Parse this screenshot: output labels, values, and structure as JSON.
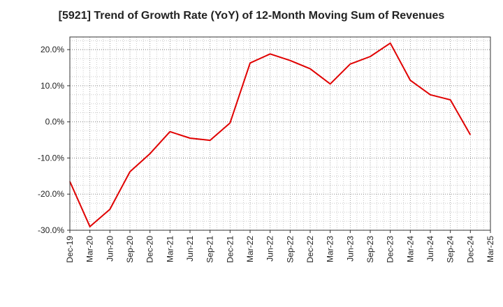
{
  "chart_data": {
    "type": "line",
    "title": "[5921]  Trend of Growth Rate (YoY) of 12-Month Moving Sum of Revenues",
    "xlabel": "",
    "ylabel": "",
    "ylim": [
      -30,
      23.5
    ],
    "y_ticks": [
      "20.0%",
      "10.0%",
      "0.0%",
      "-10.0%",
      "-20.0%",
      "-30.0%"
    ],
    "y_tick_values": [
      20,
      10,
      0,
      -10,
      -20,
      -30
    ],
    "x_tick_labels": [
      "Dec-19",
      "Mar-20",
      "Jun-20",
      "Sep-20",
      "Dec-20",
      "Mar-21",
      "Jun-21",
      "Sep-21",
      "Dec-21",
      "Mar-22",
      "Jun-22",
      "Sep-22",
      "Dec-22",
      "Mar-23",
      "Jun-23",
      "Sep-23",
      "Dec-23",
      "Mar-24",
      "Jun-24",
      "Sep-24",
      "Dec-24",
      "Mar-25"
    ],
    "grid": true,
    "line_color": "#e00000",
    "series": [
      {
        "x": [
          "Dec-19",
          "Mar-20",
          "Jun-20",
          "Sep-20",
          "Dec-20",
          "Mar-21",
          "Jun-21",
          "Sep-21",
          "Dec-21",
          "Mar-22",
          "Jun-22",
          "Sep-22",
          "Dec-22",
          "Mar-23",
          "Jun-23",
          "Sep-23",
          "Dec-23",
          "Mar-24",
          "Jun-24",
          "Sep-24",
          "Dec-24"
        ],
        "values": [
          -16.5,
          -29.0,
          -24.2,
          -13.8,
          -8.8,
          -2.7,
          -4.5,
          -5.1,
          -0.3,
          16.3,
          18.8,
          17.0,
          14.7,
          10.5,
          16.0,
          18.1,
          21.8,
          11.5,
          7.5,
          6.1,
          -3.6
        ]
      }
    ]
  }
}
